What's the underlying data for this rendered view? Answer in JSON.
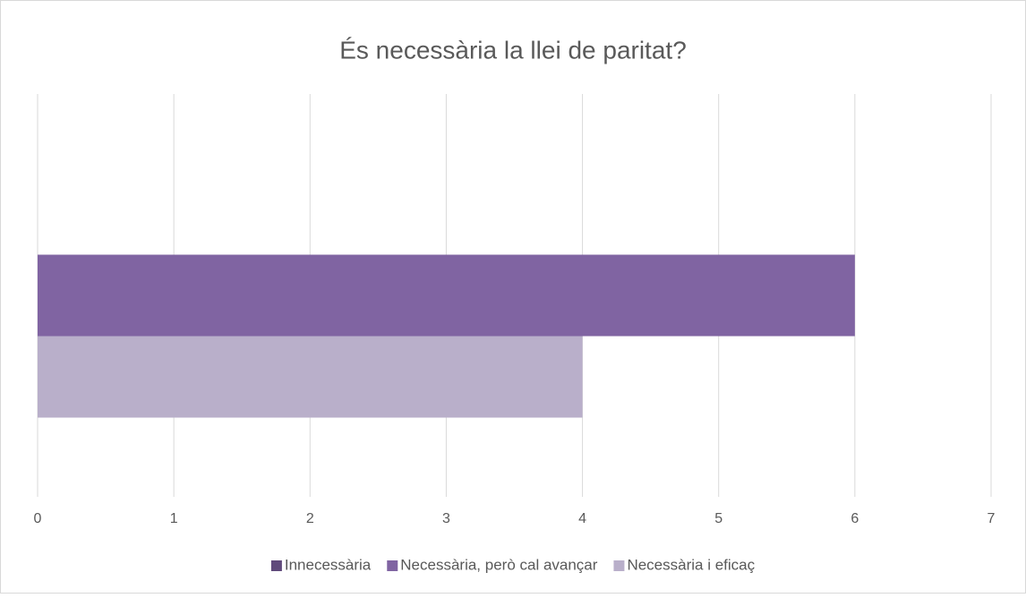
{
  "chart_data": {
    "type": "hbar",
    "title": "És necessària la llei de paritat?",
    "categories": [
      null
    ],
    "series": [
      {
        "name": "Innecessària",
        "color": "#604a7b",
        "values": [
          0
        ]
      },
      {
        "name": "Necessària, però cal avançar",
        "color": "#8064a2",
        "values": [
          6
        ]
      },
      {
        "name": "Necessària i eficaç",
        "color": "#b9afca",
        "values": [
          4
        ]
      }
    ],
    "xlim": [
      0,
      7
    ],
    "xticks": [
      0,
      1,
      2,
      3,
      4,
      5,
      6,
      7
    ],
    "grid": true,
    "legend": "bottom"
  }
}
